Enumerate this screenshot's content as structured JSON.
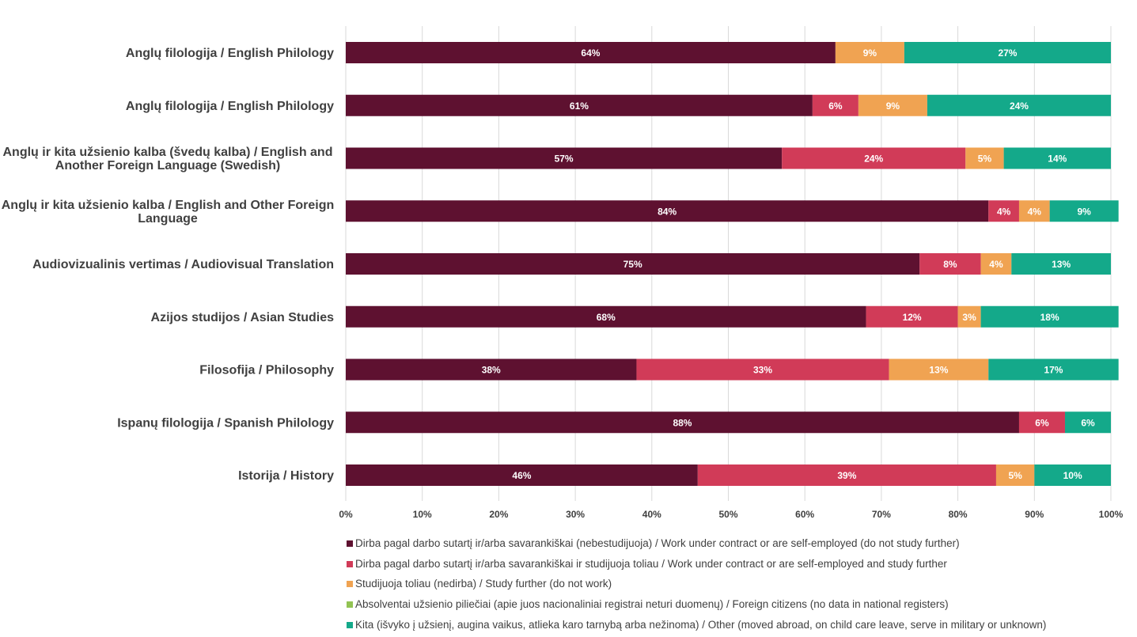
{
  "chart_data": {
    "type": "bar",
    "orientation": "horizontal",
    "stacked": "percent",
    "categories": [
      "Anglų filologija / English Philology",
      "Anglų filologija / English Philology",
      "Anglų ir kita užsienio kalba (švedų kalba) / English and Another Foreign Language (Swedish)",
      "Anglų ir kita užsienio kalba / English and Other Foreign Language",
      "Audiovizualinis vertimas / Audiovisual Translation",
      "Azijos studijos / Asian Studies",
      "Filosofija / Philosophy",
      "Ispanų filologija / Spanish Philology",
      "Istorija / History"
    ],
    "category_lines": [
      [
        "Anglų filologija / English Philology"
      ],
      [
        "Anglų filologija / English Philology"
      ],
      [
        "Anglų ir kita užsienio kalba (švedų kalba) / English and",
        "Another Foreign Language (Swedish)"
      ],
      [
        "Anglų ir kita užsienio kalba / English and Other Foreign",
        "Language"
      ],
      [
        "Audiovizualinis vertimas / Audiovisual Translation"
      ],
      [
        "Azijos studijos / Asian Studies"
      ],
      [
        "Filosofija / Philosophy"
      ],
      [
        "Ispanų filologija / Spanish Philology"
      ],
      [
        "Istorija / History"
      ]
    ],
    "series": [
      {
        "name": "Dirba pagal darbo sutartį ir/arba savarankiškai (nebestudijuoja) / Work under contract or are self-employed (do not study further)",
        "color": "#5e1130",
        "values": [
          64,
          61,
          57,
          84,
          75,
          68,
          38,
          88,
          46
        ]
      },
      {
        "name": "Dirba pagal darbo sutartį ir/arba savarankiškai  ir studijuoja toliau / Work under contract or are self-employed and study further",
        "color": "#d13b58",
        "values": [
          0,
          6,
          24,
          4,
          8,
          12,
          33,
          6,
          39
        ]
      },
      {
        "name": "Studijuoja toliau (nedirba) / Study further (do not work)",
        "color": "#f0a352",
        "values": [
          9,
          9,
          5,
          4,
          4,
          3,
          13,
          0,
          5
        ]
      },
      {
        "name": "Absolventai užsienio piliečiai (apie juos nacionaliniai registrai neturi duomenų) / Foreign citizens (no data in national registers)",
        "color": "#92c353",
        "values": [
          0,
          0,
          0,
          0,
          0,
          0,
          0,
          0,
          0
        ]
      },
      {
        "name": "Kita (išvyko į užsienį, augina vaikus, atlieka karo tarnybą arba nežinoma) / Other (moved abroad, on child care leave, serve in military or unknown)",
        "color": "#14a98a",
        "values": [
          27,
          24,
          14,
          9,
          13,
          18,
          17,
          6,
          10
        ]
      }
    ],
    "xlim": [
      0,
      100
    ],
    "xticks": [
      "0%",
      "10%",
      "20%",
      "30%",
      "40%",
      "50%",
      "60%",
      "70%",
      "80%",
      "90%",
      "100%"
    ],
    "grid": "vertical",
    "legend_position": "bottom"
  }
}
